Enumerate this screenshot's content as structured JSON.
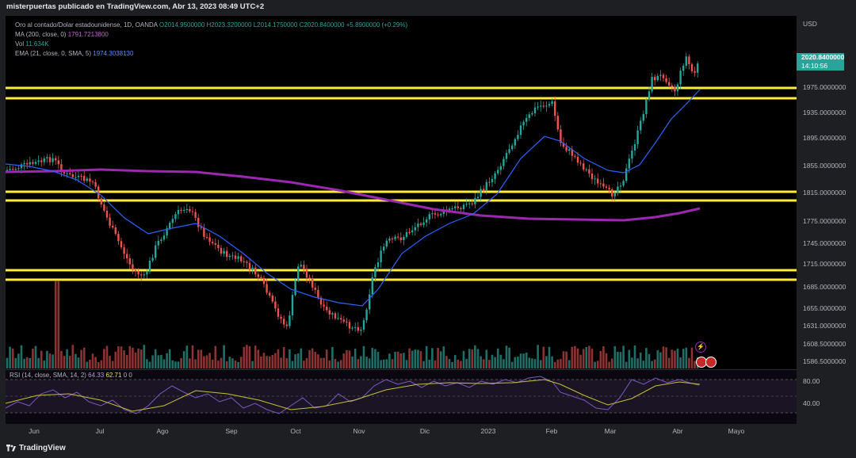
{
  "header": {
    "title": "misterpuertas publicado en TradingView.com, Abr 13, 2023 08:49 UTC+2"
  },
  "legend": {
    "symbol": "Oro al contado/Dolar estadounidense, 1D, OANDA",
    "open": "O2014.9500000",
    "high": "H2023.3200000",
    "low": "L2014.1750000",
    "close": "C2020.8400000",
    "change": "+5.8900000 (+0.29%)",
    "ma_label": "MA (200, close, 0)",
    "ma_value": "1791.7213800",
    "vol_label": "Vol",
    "vol_value": "11.634K",
    "ema_label": "EMA (21, close, 0, SMA, 5)",
    "ema_value": "1974.3038130",
    "rsi_label": "RSI (14, close, SMA, 14, 2)",
    "rsi_value": "64.33",
    "rsi_ma_value": "62.71",
    "rsi_extra": "0  0"
  },
  "price_axis": {
    "currency": "USD",
    "last_price": "2020.8400000",
    "countdown": "14:10:56",
    "labels": [
      "1975.0000000",
      "1935.0000000",
      "1895.0000000",
      "1855.0000000",
      "1815.0000000",
      "1775.0000000",
      "1745.0000000",
      "1715.0000000",
      "1685.0000000",
      "1655.0000000",
      "1631.0000000",
      "1608.5000000",
      "1586.5000000"
    ],
    "rsi_labels": [
      "80.00",
      "40.00"
    ]
  },
  "time_axis": {
    "labels": [
      "Jun",
      "Jul",
      "Ago",
      "Sep",
      "Oct",
      "Nov",
      "Dic",
      "2023",
      "Feb",
      "Mar",
      "Abr",
      "Mayo"
    ]
  },
  "footer": {
    "brand": "TradingView"
  },
  "colors": {
    "up": "#26a69a",
    "down": "#ef5350",
    "sr_line": "#ffeb3b",
    "ma200": "#9c27b0",
    "ema21": "#2962ff",
    "rsi": "#7e57c2",
    "rsi_ma": "#c6c13a"
  }
}
